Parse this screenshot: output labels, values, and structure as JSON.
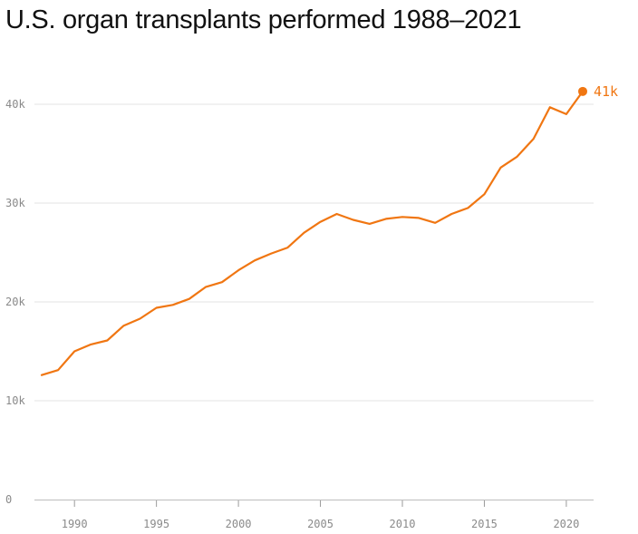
{
  "title": "U.S. organ transplants performed 1988–2021",
  "end_label": "41k",
  "colors": {
    "line": "#f07612",
    "grid": "#e3e3e3",
    "tick_text": "#8a8a8a"
  },
  "chart_data": {
    "type": "line",
    "title": "U.S. organ transplants performed 1988–2021",
    "xlabel": "",
    "ylabel": "",
    "xlim": [
      1988,
      2021.5
    ],
    "ylim": [
      0,
      41000
    ],
    "grid": true,
    "x_ticks": [
      1990,
      1995,
      2000,
      2005,
      2010,
      2015,
      2020
    ],
    "y_ticks": [
      0,
      10000,
      20000,
      30000,
      40000
    ],
    "y_tick_labels": [
      "0",
      "10k",
      "20k",
      "30k",
      "40k"
    ],
    "series": [
      {
        "x": [
          1988,
          1989,
          1990,
          1991,
          1992,
          1993,
          1994,
          1995,
          1996,
          1997,
          1998,
          1999,
          2000,
          2001,
          2002,
          2003,
          2004,
          2005,
          2006,
          2007,
          2008,
          2009,
          2010,
          2011,
          2012,
          2013,
          2014,
          2015,
          2016,
          2017,
          2018,
          2019,
          2020,
          2021
        ],
        "y": [
          12600,
          13100,
          15000,
          15700,
          16100,
          17600,
          18300,
          19400,
          19700,
          20300,
          21500,
          22000,
          23200,
          24200,
          24900,
          25500,
          27000,
          28100,
          28900,
          28300,
          27900,
          28400,
          28600,
          28500,
          28000,
          28900,
          29500,
          30900,
          33600,
          34700,
          36500,
          39700,
          39000,
          41300
        ]
      }
    ]
  }
}
